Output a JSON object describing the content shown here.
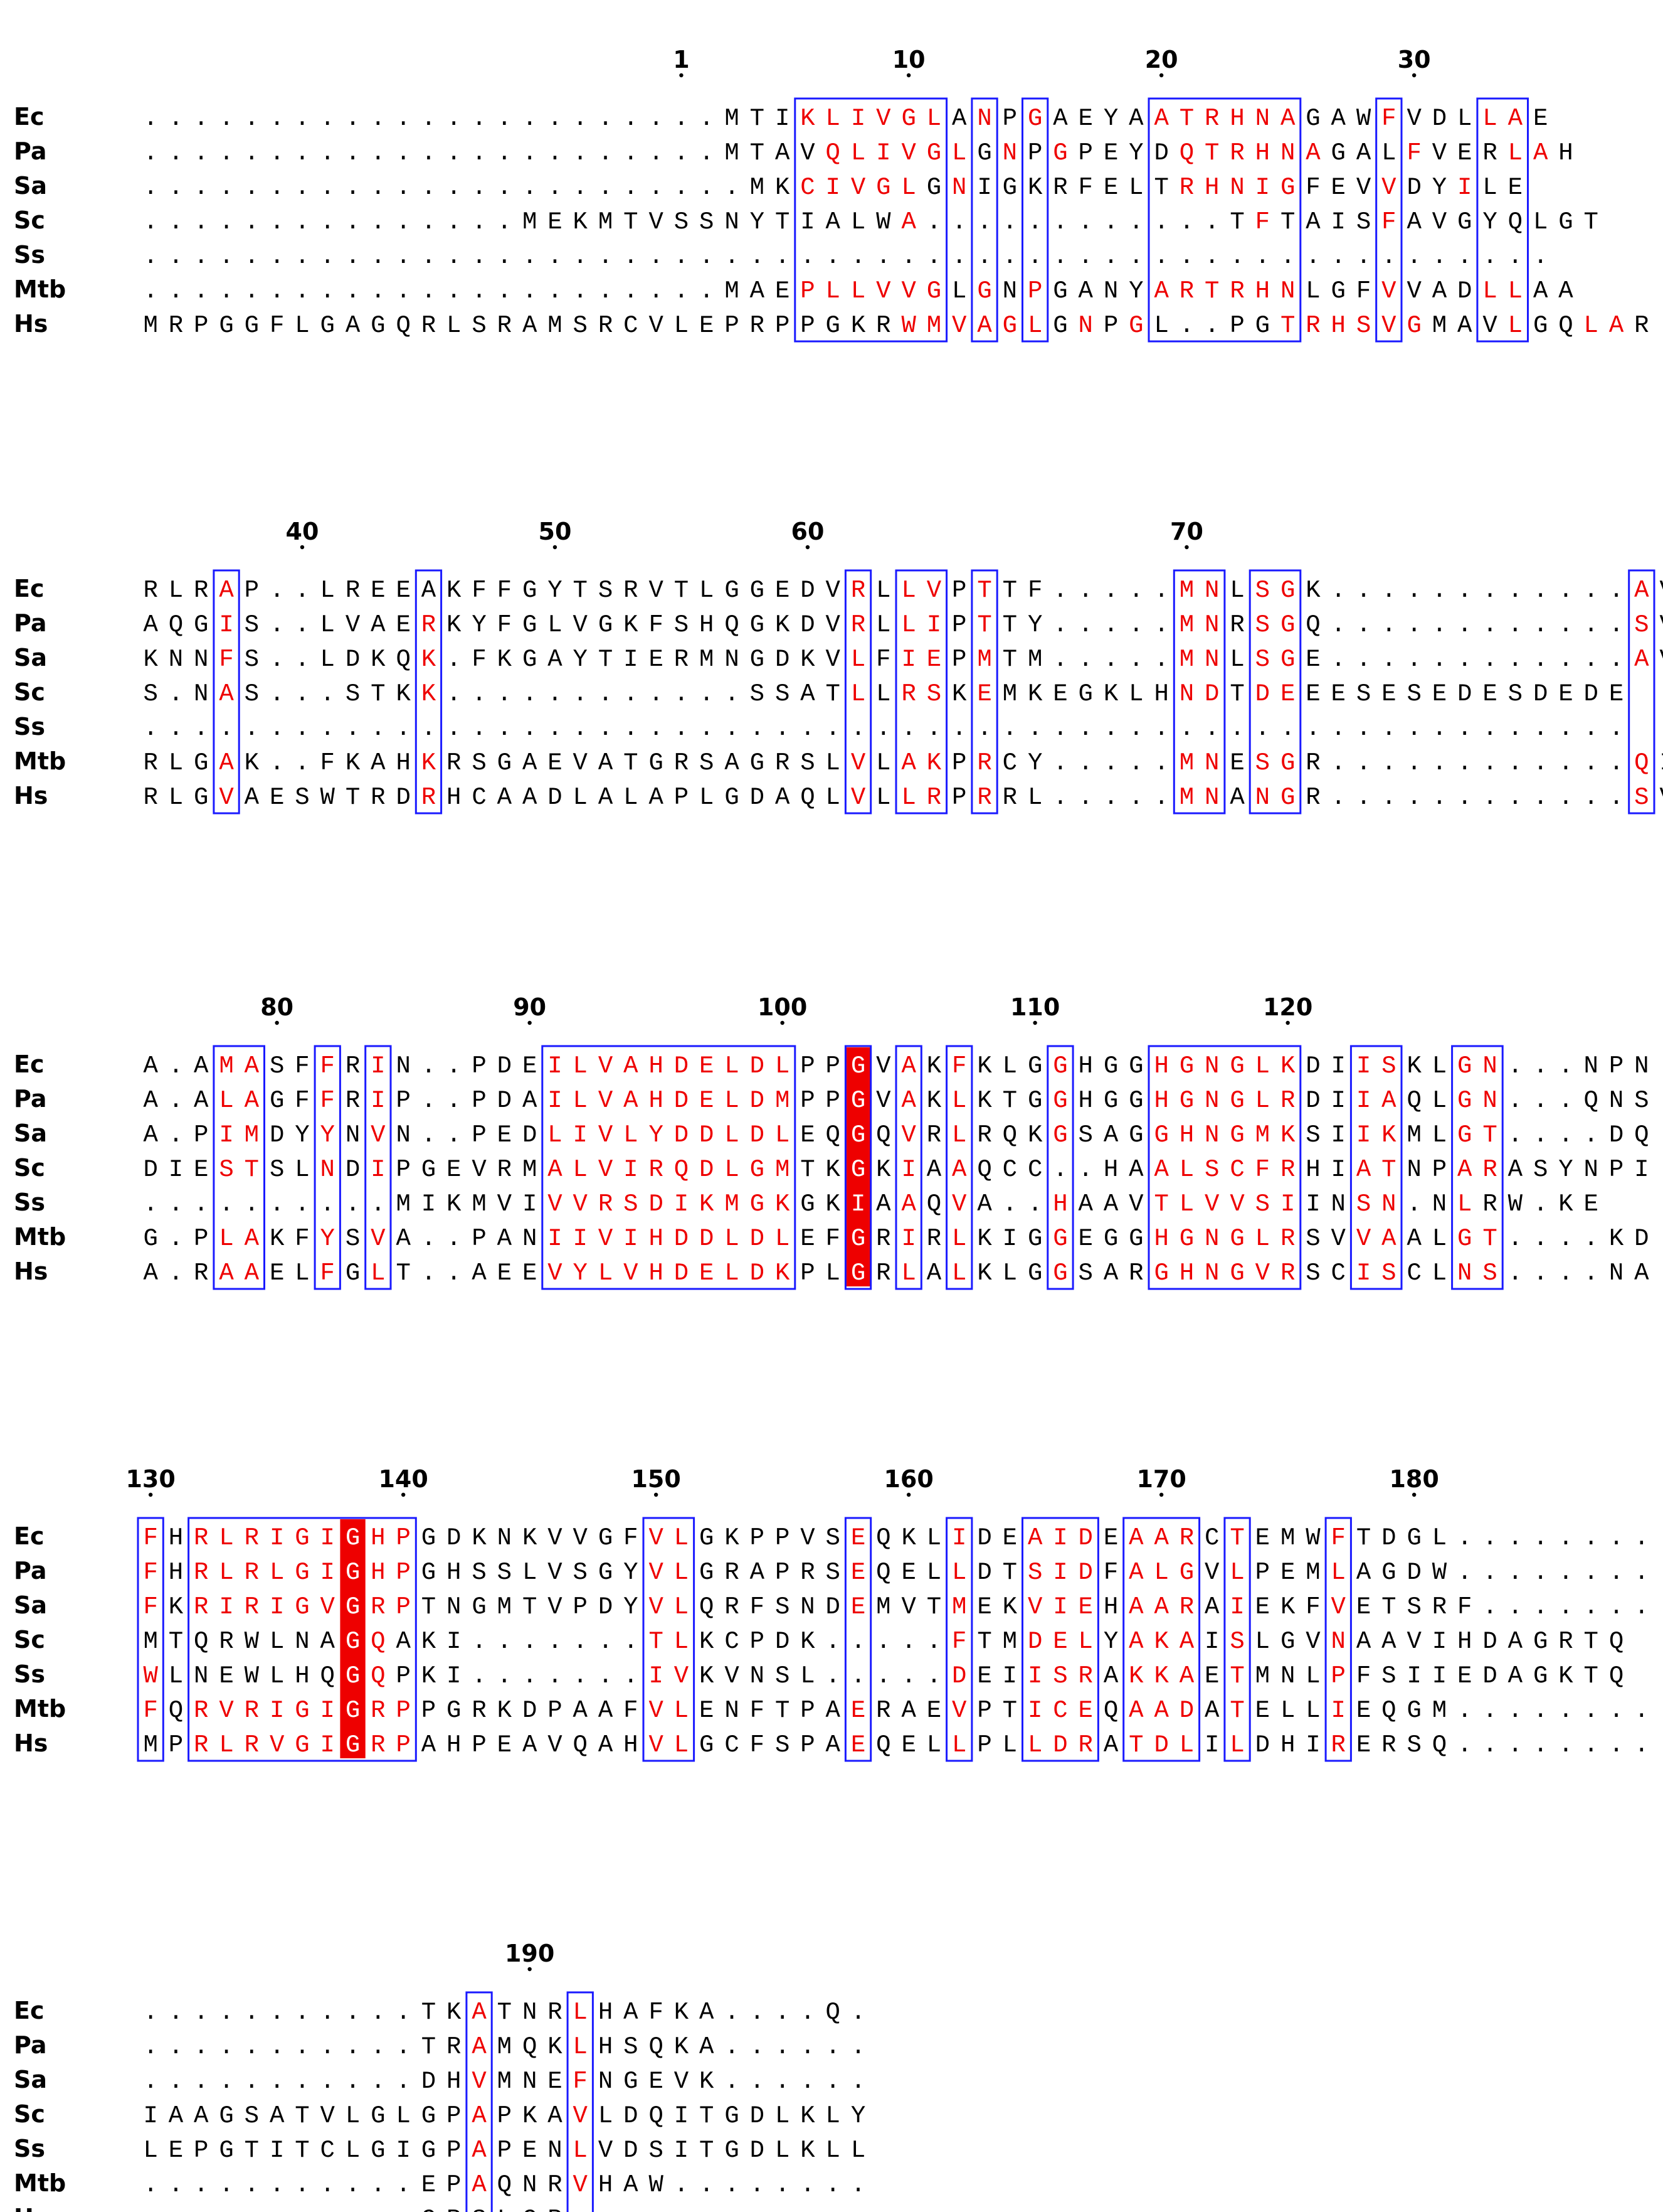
{
  "colors": {
    "conserved_text": "#ee0000",
    "identical_fill": "#ee0000",
    "box_stroke": "#1a1aff",
    "default_text": "#000000",
    "identical_text": "#ffffff"
  },
  "species": [
    "Ec",
    "Pa",
    "Sa",
    "Sc",
    "Ss",
    "Mtb",
    "Hs"
  ],
  "blocks": [
    {
      "ticks": [
        {
          "label": "1",
          "col": 21
        },
        {
          "label": "10",
          "col": 30
        },
        {
          "label": "20",
          "col": 40
        },
        {
          "label": "30",
          "col": 50
        }
      ],
      "rows": [
        ".......................MTIKLIVGLANPGAEYAATRHNAGAWFVDLLAE",
        ".......................MTAVQLIVGLGNPGPEYDQTRHNAGALFVERLAH",
        "........................MKCIVGLGNIGKRFELTRHNIGFEVVDYILE",
        "...............MEKMTVSSNYTIALWA............TFTAISFAVGYQLGT",
        "........................................................",
        ".......................MAEPLLVVGLGNPGANYARTRHNLGFVVADLLAA",
        "MRPGGFLGAGQRLSRAMSRCVLEPRPPGKRWMVAGLGNPGL..PGTRHSVGMAVLGQLAR"
      ],
      "red": [
        [
          26,
          27,
          28,
          29,
          30,
          31,
          33,
          35,
          40,
          41,
          42,
          43,
          44,
          45,
          49,
          53,
          54
        ],
        [
          27,
          28,
          29,
          30,
          31,
          32,
          34,
          36,
          41,
          42,
          43,
          44,
          45,
          46,
          50,
          54,
          55
        ],
        [
          26,
          27,
          28,
          29,
          30,
          32,
          41,
          42,
          43,
          44,
          45,
          49,
          52
        ],
        [
          30,
          44,
          49
        ],
        [],
        [
          26,
          27,
          28,
          29,
          30,
          31,
          33,
          35,
          40,
          41,
          42,
          43,
          44,
          45,
          49,
          53,
          54
        ],
        [
          30,
          31,
          32,
          33,
          34,
          35,
          37,
          39,
          45,
          46,
          47,
          48,
          49,
          50,
          54,
          57,
          58
        ]
      ],
      "highlight": [],
      "boxes": [
        [
          26,
          31
        ],
        [
          33,
          33
        ],
        [
          35,
          35
        ],
        [
          40,
          45
        ],
        [
          49,
          49
        ],
        [
          53,
          54
        ]
      ]
    },
    {
      "ticks": [
        {
          "label": "40",
          "col": 6
        },
        {
          "label": "50",
          "col": 16
        },
        {
          "label": "60",
          "col": 26
        },
        {
          "label": "70",
          "col": 41
        }
      ],
      "rows": [
        "RLRAP..LREEAKFFGYTSRVTLGGEDVRLLVPTTF.....MNLSGK............AV",
        "AQGIS..LVAERKYFGLVGKFSHQGKDVRLLIPTTY.....MNRSGQ............SV",
        "KNNFS..LDKQK.FKGAYTIERMNGDKVLFIEPMTM.....MNLSGE............AV",
        "S.NAS...STKK............SSATLLRSKEMKEGKLHNDTDEEESESEDESDEDE",
        "...........................................................",
        "RLGAK..FKAHKRSGAEVATGRSAGRSLVLAKPRCY.....MNESGR............QI",
        "RLGVAESWTRDRHCAADLALAPLGDAQLVLLRPRRL.....MNANGR............SV"
      ],
      "red": [
        [
          3,
          28,
          30,
          31,
          33,
          41,
          42,
          44,
          45,
          59
        ],
        [
          3,
          11,
          28,
          30,
          31,
          33,
          41,
          42,
          44,
          45,
          59
        ],
        [
          3,
          11,
          28,
          30,
          31,
          33,
          41,
          42,
          44,
          45,
          59
        ],
        [
          3,
          11,
          28,
          30,
          31,
          33,
          41,
          42,
          44,
          45,
          59
        ],
        [],
        [
          3,
          11,
          28,
          30,
          31,
          33,
          41,
          42,
          44,
          45,
          59
        ],
        [
          3,
          11,
          28,
          30,
          31,
          33,
          41,
          42,
          44,
          45,
          59
        ]
      ],
      "highlight": [],
      "boxes": [
        [
          3,
          3
        ],
        [
          11,
          11
        ],
        [
          28,
          28
        ],
        [
          30,
          31
        ],
        [
          33,
          33
        ],
        [
          41,
          42
        ],
        [
          44,
          45
        ],
        [
          59,
          59
        ]
      ]
    },
    {
      "ticks": [
        {
          "label": "80",
          "col": 5
        },
        {
          "label": "90",
          "col": 15
        },
        {
          "label": "100",
          "col": 25
        },
        {
          "label": "110",
          "col": 35
        },
        {
          "label": "120",
          "col": 45
        }
      ],
      "rows": [
        "A.AMASFFRIN..PDEILVAHDELDLPPGVAKFKLGGHGGHGNGLKDIISKLGN...NPN",
        "A.ALAGFFRIP..PDAILVAHDELDMPPGVAKLKTGGHGGHGNGLRDIIAQLGN...QNS",
        "A.PIMDYYNVN..PEDLIVLYDDLDLEQGQVRLRQKGSAGGHNGMKSIIKMLGT....DQ",
        "DIESTSLNDIPGEVRMALVIRQDLGMTKGKIAAQCC..HAALSCFRHIATNPARASYNPI",
        "..........MIKMVIVVRSDIKMGKGKIAAQVA..HAAVTLVVSIINSN.NLRW.KE",
        "G.PLAKFYSVA..PANIIVIHDDLDLEFGRIRLKIGGEGGHGNGLRSVVAALGT....KD",
        "A.RAAELFGLT..AEEVYLVHDELDKPLGRLALKLGGSARGHNGVRSCISCLNS....NA"
      ],
      "red": [
        [
          3,
          4,
          7,
          9,
          16,
          17,
          18,
          19,
          20,
          21,
          22,
          23,
          24,
          25,
          30,
          32,
          36,
          40,
          41,
          42,
          43,
          44,
          45,
          48,
          49,
          52,
          53
        ],
        [
          3,
          4,
          7,
          9,
          16,
          17,
          18,
          19,
          20,
          21,
          22,
          23,
          24,
          25,
          30,
          32,
          36,
          40,
          41,
          42,
          43,
          44,
          45,
          48,
          49,
          52,
          53
        ],
        [
          3,
          4,
          7,
          9,
          16,
          17,
          18,
          19,
          20,
          21,
          22,
          23,
          24,
          25,
          30,
          32,
          36,
          40,
          41,
          42,
          43,
          44,
          45,
          48,
          49,
          52,
          53
        ],
        [
          3,
          4,
          7,
          9,
          16,
          17,
          18,
          19,
          20,
          21,
          22,
          23,
          24,
          25,
          30,
          32,
          36,
          40,
          41,
          42,
          43,
          44,
          45,
          48,
          49,
          52,
          53
        ],
        [
          16,
          17,
          18,
          19,
          20,
          21,
          22,
          23,
          24,
          25,
          30,
          32,
          36,
          40,
          41,
          42,
          43,
          44,
          45,
          48,
          49,
          52
        ],
        [
          3,
          4,
          7,
          9,
          16,
          17,
          18,
          19,
          20,
          21,
          22,
          23,
          24,
          25,
          30,
          32,
          36,
          40,
          41,
          42,
          43,
          44,
          45,
          48,
          49,
          52,
          53
        ],
        [
          3,
          4,
          7,
          9,
          16,
          17,
          18,
          19,
          20,
          21,
          22,
          23,
          24,
          25,
          30,
          32,
          36,
          40,
          41,
          42,
          43,
          44,
          45,
          48,
          49,
          52,
          53
        ]
      ],
      "highlight": [
        28
      ],
      "boxes": [
        [
          3,
          4
        ],
        [
          7,
          7
        ],
        [
          9,
          9
        ],
        [
          16,
          25
        ],
        [
          28,
          28
        ],
        [
          30,
          30
        ],
        [
          32,
          32
        ],
        [
          36,
          36
        ],
        [
          40,
          45
        ],
        [
          48,
          49
        ],
        [
          52,
          53
        ]
      ]
    },
    {
      "ticks": [
        {
          "label": "130",
          "col": 0
        },
        {
          "label": "140",
          "col": 10
        },
        {
          "label": "150",
          "col": 20
        },
        {
          "label": "160",
          "col": 30
        },
        {
          "label": "170",
          "col": 40
        },
        {
          "label": "180",
          "col": 50
        }
      ],
      "rows": [
        "FHRLRIGIGHPGDKNKVVGFVLGKPPVSEQKLIDEAIDEAARCTEMWFTDGL........",
        "FHRLRLGIGHPGHSSLVSGYVLGRAPRSEQELLDTSIDFALGVLPEMLAGDW........",
        "FKRIRIGVGRPTNGMTVPDYVLQRFSNDEMVTMEKVIEHAARAIEKFVETSRF.......",
        "MTQRWLNAGQAKI.......TLKCPDK.....FTMDELYAKAISLGVNAAVIHDAGRTQ",
        "WLNEWLHQGQPKI.......IVKVNSL.....DEIISRAKKAETMNLPFSIIEDAGKTQ",
        "FQRVRIGIGRPPGRKDPAAFVLENFTPAERAEVPTICEQAADATELLIEQGM........",
        "MPRLRVGIGRPAHPEAVQAHVLGCFSPAEQELLPLLDRATDLILDHIRERSQ........"
      ],
      "red": [
        [
          0,
          2,
          3,
          4,
          5,
          6,
          7,
          9,
          10,
          20,
          21,
          28,
          32,
          35,
          36,
          37,
          39,
          40,
          41,
          43,
          47
        ],
        [
          0,
          2,
          3,
          4,
          5,
          6,
          7,
          9,
          10,
          20,
          21,
          28,
          32,
          35,
          36,
          37,
          39,
          40,
          41,
          43,
          47
        ],
        [
          0,
          2,
          3,
          4,
          5,
          6,
          7,
          9,
          10,
          20,
          21,
          28,
          32,
          35,
          36,
          37,
          39,
          40,
          41,
          43,
          47
        ],
        [
          9,
          20,
          21,
          28,
          32,
          35,
          36,
          37,
          39,
          40,
          41,
          43,
          47
        ],
        [
          0,
          9,
          20,
          21,
          28,
          32,
          35,
          36,
          37,
          39,
          40,
          41,
          43,
          47
        ],
        [
          0,
          2,
          3,
          4,
          5,
          6,
          7,
          9,
          10,
          20,
          21,
          28,
          32,
          35,
          36,
          37,
          39,
          40,
          41,
          43,
          47
        ],
        [
          2,
          3,
          4,
          5,
          6,
          7,
          9,
          10,
          20,
          21,
          28,
          32,
          35,
          36,
          37,
          39,
          40,
          41,
          43,
          47
        ]
      ],
      "highlight": [
        8
      ],
      "boxes": [
        [
          0,
          0
        ],
        [
          2,
          10
        ],
        [
          20,
          21
        ],
        [
          28,
          28
        ],
        [
          32,
          32
        ],
        [
          35,
          37
        ],
        [
          39,
          41
        ],
        [
          43,
          43
        ],
        [
          47,
          47
        ]
      ]
    },
    {
      "ticks": [
        {
          "label": "190",
          "col": 15
        }
      ],
      "rows": [
        "...........TKATNRLHAFKA....Q.",
        "...........TRAMQKLHSQKA......",
        "...........DHVMNEFNGEVK......",
        "IAAGSATVLGLGPAPKAVLDQITGDLKLY",
        "LEPGTITCLGIGPAPENLVDSITGDLKLL",
        "...........EPAQNRVHAW........",
        "...........GPSLGP............"
      ],
      "red": [
        [
          13,
          17
        ],
        [
          13,
          17
        ],
        [
          13,
          17
        ],
        [
          13,
          17
        ],
        [
          13,
          17
        ],
        [
          13,
          17
        ],
        [
          17
        ]
      ],
      "highlight": [],
      "boxes": [
        [
          13,
          13
        ],
        [
          17,
          17
        ]
      ]
    }
  ]
}
